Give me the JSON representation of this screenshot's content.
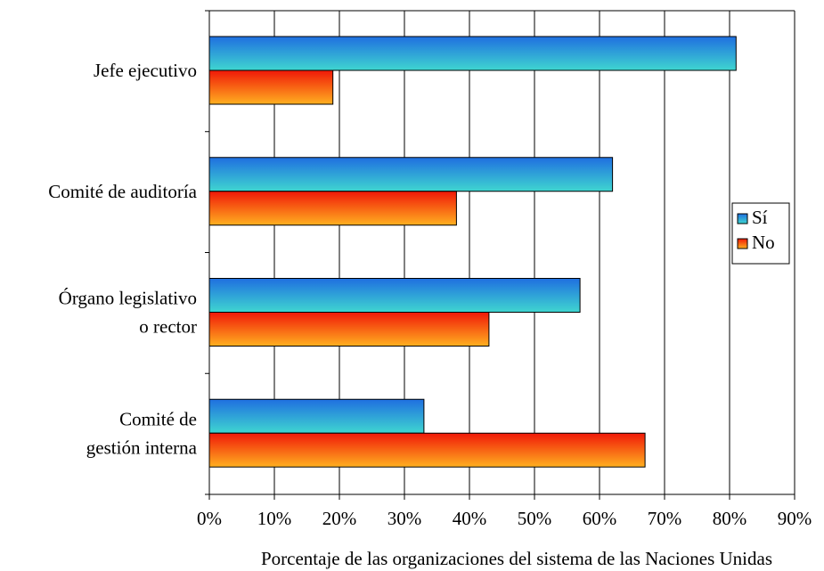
{
  "chart_data": {
    "type": "bar",
    "orientation": "horizontal",
    "categories": [
      [
        "Jefe ejecutivo"
      ],
      [
        "Comité de auditoría"
      ],
      [
        "Órgano legislativo",
        "o rector"
      ],
      [
        "Comité de",
        "gestión interna"
      ]
    ],
    "series": [
      {
        "name": "Sí",
        "values": [
          81,
          62,
          57,
          33
        ],
        "color_dark": "#1f6fe0",
        "color_light": "#3fd6d0"
      },
      {
        "name": "No",
        "values": [
          19,
          38,
          43,
          67
        ],
        "color_dark": "#f01808",
        "color_light": "#ffb020"
      }
    ],
    "xlabel": "Porcentaje de las organizaciones del sistema de las Naciones Unidas",
    "xlim": [
      0,
      90
    ],
    "xticks": [
      "0%",
      "10%",
      "20%",
      "30%",
      "40%",
      "50%",
      "60%",
      "70%",
      "80%",
      "90%"
    ],
    "grid": true,
    "legend_position": "right"
  }
}
